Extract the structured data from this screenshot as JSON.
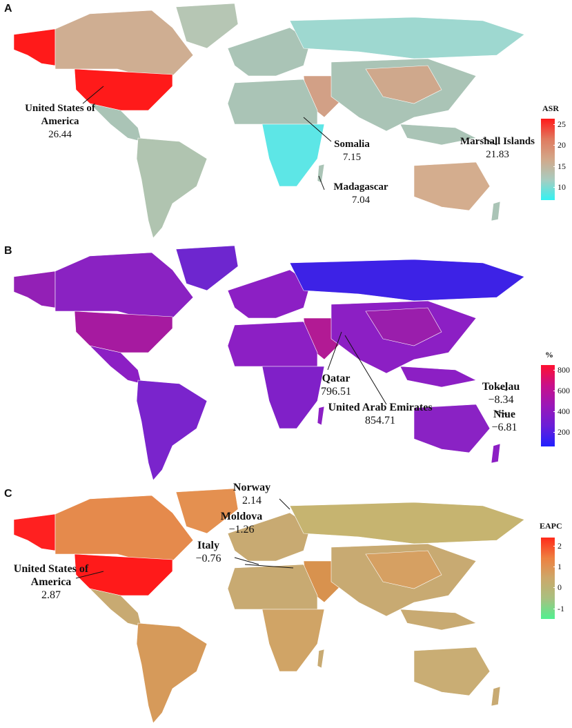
{
  "panels": [
    {
      "letter": "A",
      "legend": {
        "title": "ASR",
        "ticks": [
          "25",
          "20",
          "15",
          "10"
        ],
        "colors": [
          "#ff1a1a",
          "#e07a5f",
          "#d2a88a",
          "#a8ccc0",
          "#33f2f2"
        ]
      },
      "land_color": "#aac4b6",
      "highlight_colors": {
        "usa": "#ff1a1a",
        "alaska": "#ff1a1a",
        "canada": "#cfae92",
        "greenland": "#b6c6b4",
        "russia": "#9ed8d0",
        "china": "#cfa88c",
        "australia": "#d4ad8e",
        "africa_south": "#5de6e6",
        "mideast": "#d2a086",
        "south_america": "#b0c4b0"
      },
      "labels": [
        {
          "name": "United States of America",
          "name_l1": "United States of",
          "name_l2": "America",
          "value": "26.44"
        },
        {
          "name": "Somalia",
          "value": "7.15"
        },
        {
          "name": "Madagascar",
          "value": "7.04"
        },
        {
          "name": "Marshall Islands",
          "value": "21.83"
        }
      ]
    },
    {
      "letter": "B",
      "legend": {
        "title": "%",
        "ticks": [
          "800",
          "600",
          "400",
          "200"
        ],
        "colors": [
          "#ff1030",
          "#c8108a",
          "#9a18b8",
          "#6a1ed8",
          "#2020ff"
        ]
      },
      "land_color": "#8c1fc4",
      "highlight_colors": {
        "usa": "#a61aa0",
        "alaska": "#9320b6",
        "canada": "#8a22c2",
        "greenland": "#6e26cf",
        "russia": "#3d22e6",
        "china": "#9a1eac",
        "australia": "#8a22c4",
        "africa_south": "#8020c8",
        "mideast": "#b21a94",
        "south_america": "#7a24cc"
      },
      "labels": [
        {
          "name": "Qatar",
          "value": "796.51"
        },
        {
          "name": "United Arab Emirates",
          "value": "854.71"
        },
        {
          "name": "Tokelau",
          "value": "−8.34"
        },
        {
          "name": "Niue",
          "value": "−6.81"
        }
      ]
    },
    {
      "letter": "C",
      "legend": {
        "title": "EAPC",
        "ticks": [
          "2",
          "1",
          "0",
          "-1"
        ],
        "colors": [
          "#ff2a1a",
          "#ee8040",
          "#cca86a",
          "#a8c080",
          "#50f090"
        ]
      },
      "land_color": "#c8aa72",
      "highlight_colors": {
        "usa": "#ff1a1a",
        "alaska": "#ff2020",
        "canada": "#e58a4c",
        "greenland": "#e49050",
        "russia": "#c6b470",
        "china": "#d6a062",
        "australia": "#c9ad74",
        "africa_south": "#d0a466",
        "mideast": "#d8924e",
        "south_america": "#d69a5a"
      },
      "labels": [
        {
          "name": "Norway",
          "value": "2.14"
        },
        {
          "name": "Moldova",
          "value": "−1.26"
        },
        {
          "name": "Italy",
          "value": "−0.76"
        },
        {
          "name": "United States of America",
          "name_l1": "United States of",
          "name_l2": "America",
          "value": "2.87"
        }
      ]
    }
  ]
}
